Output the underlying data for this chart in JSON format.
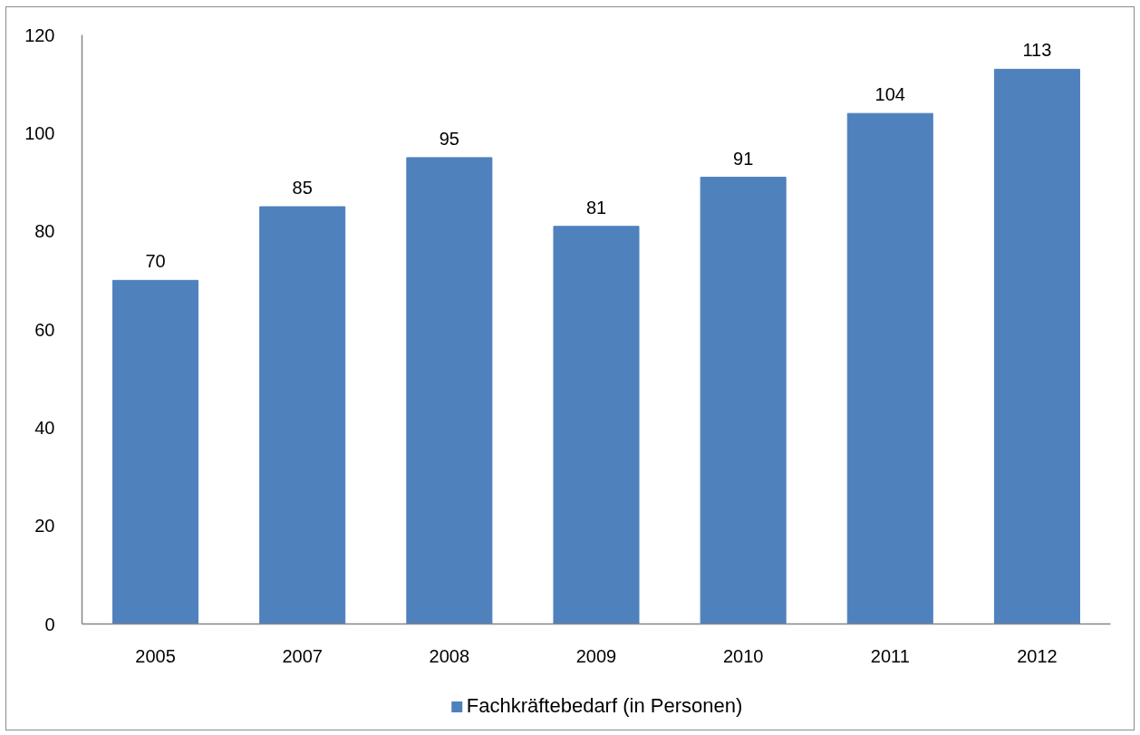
{
  "chart_data": {
    "type": "bar",
    "categories": [
      "2005",
      "2007",
      "2008",
      "2009",
      "2010",
      "2011",
      "2012"
    ],
    "series": [
      {
        "name": "Fachkräftebedarf (in Personen)",
        "color": "#4f81bd",
        "values": [
          70,
          85,
          95,
          81,
          91,
          104,
          113
        ]
      }
    ],
    "ylim": [
      0,
      120
    ],
    "yticks": [
      0,
      20,
      40,
      60,
      80,
      100,
      120
    ],
    "data_labels": true,
    "legend": "bottom",
    "grid": false
  }
}
